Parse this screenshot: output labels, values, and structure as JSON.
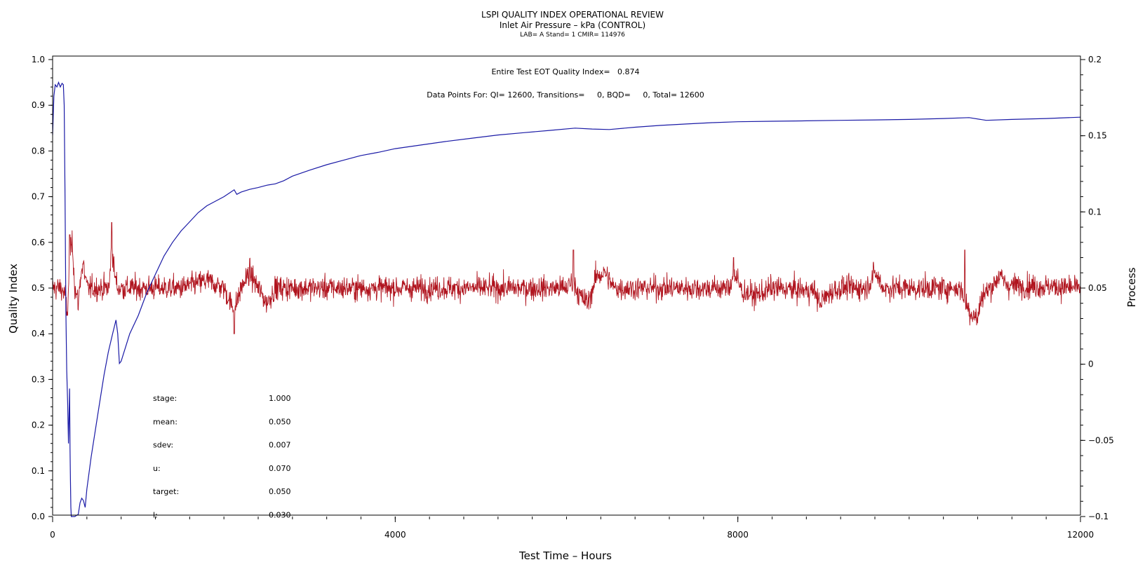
{
  "chart_data": {
    "type": "line",
    "title": "LSPI QUALITY INDEX OPERATIONAL REVIEW",
    "subtitle": "Inlet Air Pressure – kPa (CONTROL)",
    "subtitle2": "LAB= A Stand= 1 CMIR= 114976",
    "xlabel": "Test Time – Hours",
    "ylabel": "Quality Index",
    "y2label": "Process",
    "xlim": [
      0,
      12000
    ],
    "ylim": [
      0,
      1.0
    ],
    "y2lim": [
      -0.1,
      0.2
    ],
    "x_ticks": [
      {
        "value": 0,
        "label": "0"
      },
      {
        "value": 4000,
        "label": "4000"
      },
      {
        "value": 8000,
        "label": "8000"
      },
      {
        "value": 12000,
        "label": "12000"
      }
    ],
    "y_ticks": [
      {
        "value": 0.0,
        "label": "0.0"
      },
      {
        "value": 0.1,
        "label": "0.1"
      },
      {
        "value": 0.2,
        "label": "0.2"
      },
      {
        "value": 0.3,
        "label": "0.3"
      },
      {
        "value": 0.4,
        "label": "0.4"
      },
      {
        "value": 0.5,
        "label": "0.5"
      },
      {
        "value": 0.6,
        "label": "0.6"
      },
      {
        "value": 0.7,
        "label": "0.7"
      },
      {
        "value": 0.8,
        "label": "0.8"
      },
      {
        "value": 0.9,
        "label": "0.9"
      },
      {
        "value": 1.0,
        "label": "1.0"
      }
    ],
    "y2_ticks": [
      {
        "value": -0.1,
        "label": "−0.1"
      },
      {
        "value": -0.05,
        "label": "−0.05"
      },
      {
        "value": 0,
        "label": "0"
      },
      {
        "value": 0.05,
        "label": "0.05"
      },
      {
        "value": 0.1,
        "label": "0.1"
      },
      {
        "value": 0.15,
        "label": "0.15"
      },
      {
        "value": 0.2,
        "label": "0.2"
      }
    ],
    "annotations": {
      "quality_index_line": "Entire Test EOT Quality Index=   0.874",
      "data_points_line": "Data Points For: QI= 12600, Transitions=     0, BQD=     0, Total= 12600"
    },
    "stats": [
      {
        "label": "stage:",
        "value": "1.000"
      },
      {
        "label": "mean:",
        "value": "0.050"
      },
      {
        "label": "sdev:",
        "value": "0.007"
      },
      {
        "label": "u:",
        "value": "0.070"
      },
      {
        "label": "target:",
        "value": "0.050"
      },
      {
        "label": "l:",
        "value": "0.030"
      }
    ],
    "series": [
      {
        "axis": "left",
        "color": "#1a1aa6",
        "points": [
          [
            0,
            0.835
          ],
          [
            15,
            0.92
          ],
          [
            30,
            0.945
          ],
          [
            50,
            0.94
          ],
          [
            70,
            0.95
          ],
          [
            90,
            0.94
          ],
          [
            110,
            0.948
          ],
          [
            125,
            0.945
          ],
          [
            135,
            0.9
          ],
          [
            145,
            0.7
          ],
          [
            155,
            0.45
          ],
          [
            165,
            0.32
          ],
          [
            175,
            0.25
          ],
          [
            185,
            0.16
          ],
          [
            192,
            0.22
          ],
          [
            198,
            0.28
          ],
          [
            203,
            0.15
          ],
          [
            208,
            0.08
          ],
          [
            213,
            0.02
          ],
          [
            218,
            0.0
          ],
          [
            260,
            0.0
          ],
          [
            300,
            0.005
          ],
          [
            320,
            0.03
          ],
          [
            340,
            0.04
          ],
          [
            360,
            0.035
          ],
          [
            380,
            0.02
          ],
          [
            400,
            0.06
          ],
          [
            450,
            0.13
          ],
          [
            500,
            0.19
          ],
          [
            550,
            0.25
          ],
          [
            600,
            0.31
          ],
          [
            650,
            0.36
          ],
          [
            700,
            0.4
          ],
          [
            740,
            0.43
          ],
          [
            760,
            0.4
          ],
          [
            780,
            0.335
          ],
          [
            800,
            0.34
          ],
          [
            850,
            0.37
          ],
          [
            900,
            0.4
          ],
          [
            1000,
            0.44
          ],
          [
            1100,
            0.49
          ],
          [
            1200,
            0.53
          ],
          [
            1300,
            0.57
          ],
          [
            1400,
            0.6
          ],
          [
            1500,
            0.625
          ],
          [
            1600,
            0.645
          ],
          [
            1700,
            0.665
          ],
          [
            1800,
            0.68
          ],
          [
            1900,
            0.69
          ],
          [
            2000,
            0.7
          ],
          [
            2080,
            0.71
          ],
          [
            2120,
            0.715
          ],
          [
            2150,
            0.705
          ],
          [
            2200,
            0.71
          ],
          [
            2300,
            0.716
          ],
          [
            2400,
            0.72
          ],
          [
            2500,
            0.725
          ],
          [
            2600,
            0.728
          ],
          [
            2700,
            0.735
          ],
          [
            2800,
            0.745
          ],
          [
            3000,
            0.758
          ],
          [
            3200,
            0.77
          ],
          [
            3400,
            0.78
          ],
          [
            3600,
            0.79
          ],
          [
            3800,
            0.797
          ],
          [
            4000,
            0.805
          ],
          [
            4300,
            0.813
          ],
          [
            4600,
            0.821
          ],
          [
            4900,
            0.828
          ],
          [
            5200,
            0.835
          ],
          [
            5500,
            0.84
          ],
          [
            5800,
            0.845
          ],
          [
            6100,
            0.85
          ],
          [
            6300,
            0.848
          ],
          [
            6500,
            0.847
          ],
          [
            6800,
            0.852
          ],
          [
            7100,
            0.856
          ],
          [
            7400,
            0.859
          ],
          [
            7700,
            0.862
          ],
          [
            8000,
            0.864
          ],
          [
            8400,
            0.865
          ],
          [
            8800,
            0.866
          ],
          [
            9200,
            0.867
          ],
          [
            9600,
            0.868
          ],
          [
            10000,
            0.869
          ],
          [
            10400,
            0.871
          ],
          [
            10700,
            0.873
          ],
          [
            10900,
            0.867
          ],
          [
            11200,
            0.869
          ],
          [
            11600,
            0.871
          ],
          [
            12000,
            0.874
          ]
        ]
      },
      {
        "axis": "right",
        "color": "#b0141e",
        "samples": 3000,
        "base_value": 0.05,
        "noise_sd": 0.0055,
        "control_points": [
          [
            0,
            0.05
          ],
          [
            100,
            0.05
          ],
          [
            150,
            0.045
          ],
          [
            170,
            0.03
          ],
          [
            200,
            0.07
          ],
          [
            230,
            0.08
          ],
          [
            260,
            0.05
          ],
          [
            300,
            0.04
          ],
          [
            330,
            0.06
          ],
          [
            360,
            0.065
          ],
          [
            400,
            0.05
          ],
          [
            600,
            0.05
          ],
          [
            660,
            0.05
          ],
          [
            690,
            0.08
          ],
          [
            720,
            0.06
          ],
          [
            760,
            0.05
          ],
          [
            1500,
            0.05
          ],
          [
            1800,
            0.055
          ],
          [
            2000,
            0.05
          ],
          [
            2080,
            0.04
          ],
          [
            2120,
            0.035
          ],
          [
            2200,
            0.05
          ],
          [
            2300,
            0.06
          ],
          [
            2400,
            0.05
          ],
          [
            2500,
            0.04
          ],
          [
            2600,
            0.05
          ],
          [
            6000,
            0.05
          ],
          [
            6080,
            0.055
          ],
          [
            6150,
            0.045
          ],
          [
            6250,
            0.04
          ],
          [
            6350,
            0.058
          ],
          [
            6450,
            0.06
          ],
          [
            6550,
            0.05
          ],
          [
            7900,
            0.05
          ],
          [
            7950,
            0.06
          ],
          [
            8050,
            0.048
          ],
          [
            8200,
            0.045
          ],
          [
            8400,
            0.05
          ],
          [
            8900,
            0.048
          ],
          [
            8950,
            0.04
          ],
          [
            9100,
            0.048
          ],
          [
            9200,
            0.05
          ],
          [
            9500,
            0.05
          ],
          [
            9600,
            0.06
          ],
          [
            9700,
            0.05
          ],
          [
            10600,
            0.05
          ],
          [
            10700,
            0.035
          ],
          [
            10800,
            0.03
          ],
          [
            10850,
            0.045
          ],
          [
            10950,
            0.05
          ],
          [
            11050,
            0.058
          ],
          [
            11150,
            0.052
          ],
          [
            12000,
            0.05
          ]
        ],
        "spikes": [
          [
            200,
            0.085
          ],
          [
            690,
            0.093
          ],
          [
            6080,
            0.075
          ],
          [
            7950,
            0.07
          ],
          [
            10650,
            0.075
          ],
          [
            2120,
            0.02
          ]
        ]
      }
    ]
  }
}
